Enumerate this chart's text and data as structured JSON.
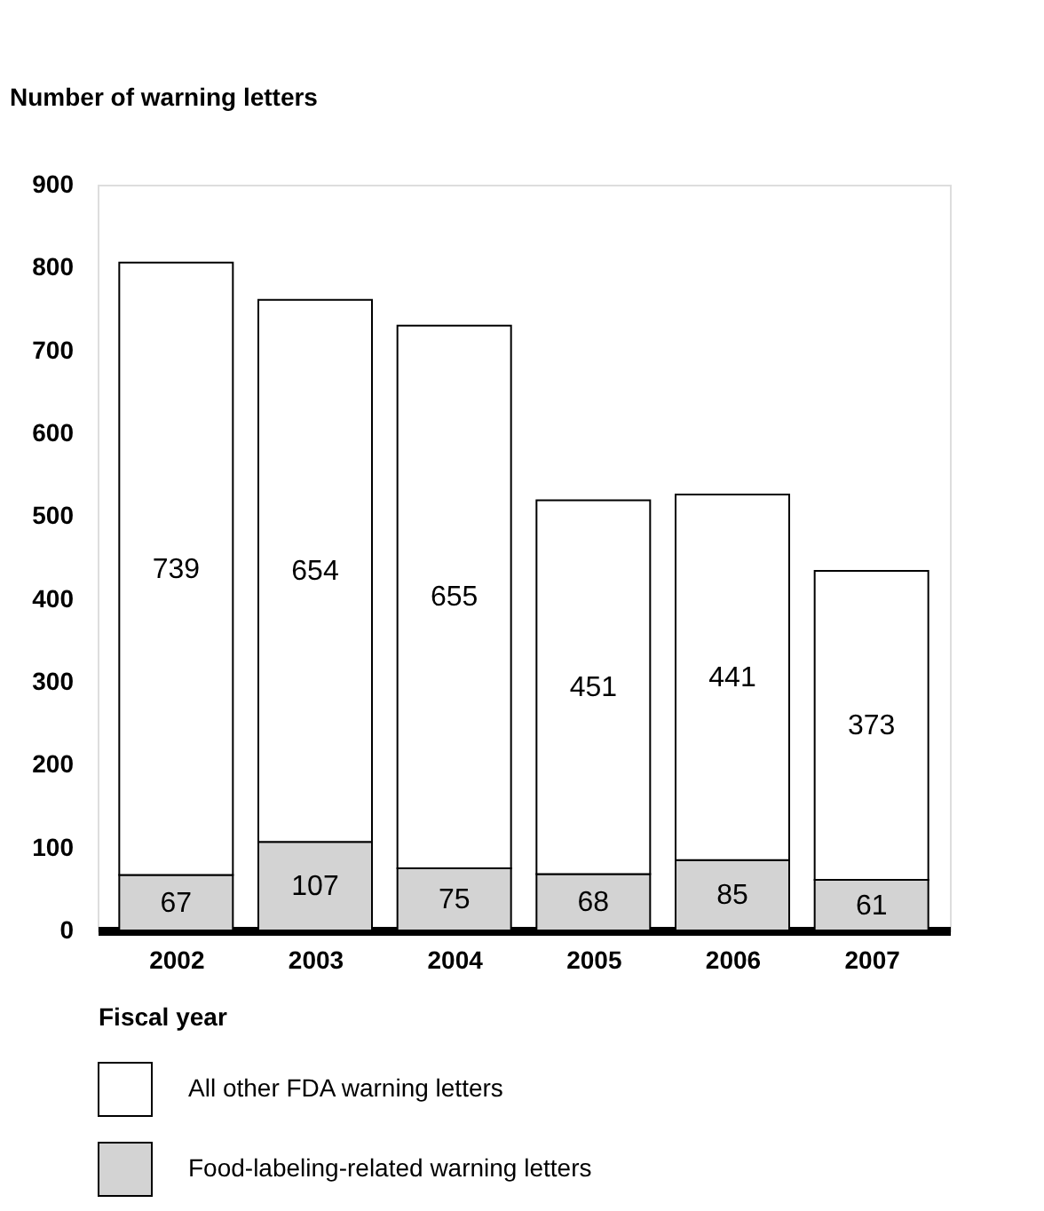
{
  "chart_data": {
    "type": "bar",
    "stacked": true,
    "ylabel": "Number of warning letters",
    "xlabel": "Fiscal year",
    "categories": [
      "2002",
      "2003",
      "2004",
      "2005",
      "2006",
      "2007"
    ],
    "series": [
      {
        "name": "Food-labeling-related warning letters",
        "color": "#d3d3d3",
        "values": [
          67,
          107,
          75,
          68,
          85,
          61
        ]
      },
      {
        "name": "All other FDA warning letters",
        "color": "#ffffff",
        "values": [
          739,
          654,
          655,
          451,
          441,
          373
        ]
      }
    ],
    "ylim": [
      0,
      900
    ],
    "yticks": [
      0,
      100,
      200,
      300,
      400,
      500,
      600,
      700,
      800,
      900
    ],
    "grid": false,
    "legend": "bottom",
    "data_labels": true
  }
}
